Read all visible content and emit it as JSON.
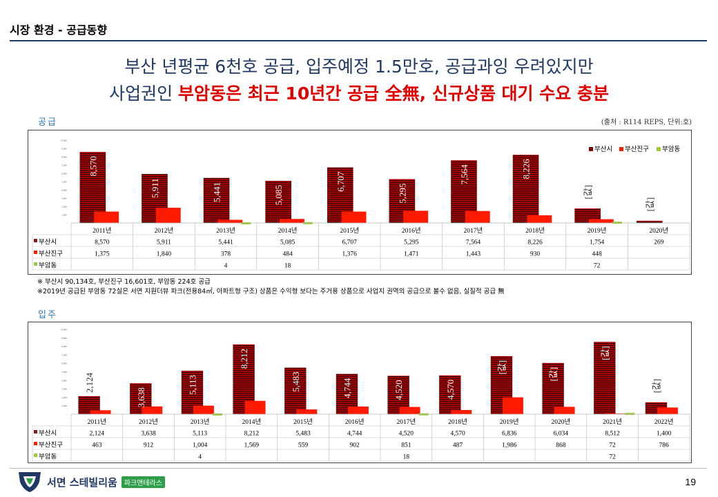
{
  "header": {
    "section_title": "시장 환경 - 공급동향",
    "headline_line1": "부산 년평균 6천호 공급, 입주예정 1.5만호, 공급과잉 우려있지만",
    "headline_line2_prefix": "사업권인 ",
    "headline_line2_emphasis": "부암동은 최근 10년간 공급 全無, 신규상품 대기 수요 충분"
  },
  "source_note": "(출처 : R114 REPS,  단위:호)",
  "colors": {
    "busan": "#8b1a1a",
    "busanjin": "#ff1a00",
    "buam": "#9acd32",
    "navy": "#1f3864"
  },
  "supply": {
    "label": "공급",
    "notes": [
      "※ 부산시 90,134호,  부산진구 16,601호,  부암동 224호  공급",
      "※2019년  공급된 부암동 72실은 서면 지원더뷰 파크(전용84㎡, 아파트형 구조) 상품은 수익형 보다는 주거용 상품으로 사업지 권역의 공급으로 볼수 없음, 실질적 공급 無"
    ]
  },
  "occupancy": {
    "label": "입주"
  },
  "chart_data": [
    {
      "type": "bar",
      "title": "공급",
      "categories": [
        "2011년",
        "2012년",
        "2013년",
        "2014년",
        "2015년",
        "2016년",
        "2017년",
        "2018년",
        "2019년",
        "2020년"
      ],
      "series": [
        {
          "name": "부산시",
          "values": [
            8570,
            5911,
            5441,
            5085,
            6707,
            5295,
            7564,
            8226,
            1754,
            269
          ],
          "bar_labels": [
            "8,570",
            "5,911",
            "5,441",
            "5,085",
            "6,707",
            "5,295",
            "7,564",
            "8,226",
            "[값]",
            "[값]"
          ],
          "table_labels": [
            "8,570",
            "5,911",
            "5,441",
            "5,085",
            "6,707",
            "5,295",
            "7,564",
            "8,226",
            "1,754",
            "269"
          ]
        },
        {
          "name": "부산진구",
          "values": [
            1375,
            1840,
            378,
            484,
            1376,
            1471,
            1443,
            930,
            448,
            0
          ],
          "table_labels": [
            "1,375",
            "1,840",
            "378",
            "484",
            "1,376",
            "1,471",
            "1,443",
            "930",
            "448",
            ""
          ]
        },
        {
          "name": "부암동",
          "values": [
            0,
            0,
            4,
            18,
            0,
            0,
            0,
            0,
            72,
            0
          ],
          "table_labels": [
            "",
            "",
            "4",
            "18",
            "",
            "",
            "",
            "",
            "72",
            ""
          ]
        }
      ],
      "yticks": [
        "-",
        "1,000",
        "2,000",
        "3,000",
        "4,000",
        "5,000",
        "6,000",
        "7,000",
        "8,000",
        "9,000",
        "10,000"
      ],
      "ylim": [
        0,
        10000
      ],
      "legend_position": "top-right"
    },
    {
      "type": "bar",
      "title": "입주",
      "categories": [
        "2011년",
        "2012년",
        "2013년",
        "2014년",
        "2015년",
        "2016년",
        "2017년",
        "2018년",
        "2019년",
        "2020년",
        "2021년",
        "2022년"
      ],
      "series": [
        {
          "name": "부산시",
          "values": [
            2124,
            3638,
            5113,
            8212,
            5483,
            4744,
            4520,
            4570,
            6836,
            6034,
            8512,
            1400
          ],
          "bar_labels": [
            "2,124",
            "3,638",
            "5,113",
            "8,212",
            "5,483",
            "4,744",
            "4,520",
            "4,570",
            "[값]",
            "[값]",
            "[값]",
            "[값]"
          ],
          "table_labels": [
            "2,124",
            "3,638",
            "5,113",
            "8,212",
            "5,483",
            "4,744",
            "4,520",
            "4,570",
            "6,836",
            "6,034",
            "8,512",
            "1,400"
          ]
        },
        {
          "name": "부산진구",
          "values": [
            463,
            912,
            1004,
            1569,
            559,
            902,
            851,
            487,
            1986,
            868,
            72,
            786
          ],
          "table_labels": [
            "463",
            "912",
            "1,004",
            "1,569",
            "559",
            "902",
            "851",
            "487",
            "1,986",
            "868",
            "72",
            "786"
          ]
        },
        {
          "name": "부암동",
          "values": [
            0,
            0,
            4,
            0,
            0,
            0,
            18,
            0,
            0,
            0,
            72,
            0
          ],
          "table_labels": [
            "",
            "",
            "4",
            "",
            "",
            "",
            "18",
            "",
            "",
            "",
            "72",
            ""
          ]
        }
      ],
      "yticks": [
        "-",
        "1,000",
        "2,000",
        "3,000",
        "4,000",
        "5,000",
        "6,000",
        "7,000",
        "8,000",
        "9,000",
        "10,000"
      ],
      "ylim": [
        0,
        10000
      ],
      "legend_position": "none"
    }
  ],
  "footer": {
    "brand": "서면 스테빌리움",
    "brand_sub": "파크앤테라스",
    "page_number": "19"
  }
}
